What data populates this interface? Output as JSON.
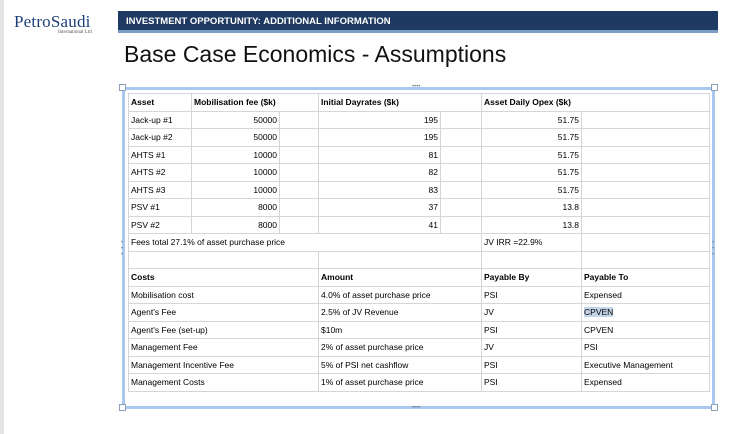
{
  "logo": {
    "name": "PetroSaudi",
    "tagline": "International Ltd"
  },
  "banner": {
    "text": "INVESTMENT OPPORTUNITY: ADDITIONAL INFORMATION"
  },
  "title": "Base Case Economics - Assumptions",
  "assets_table": {
    "headers": [
      "Asset",
      "Mobilisation fee ($k)",
      "Initial Dayrates ($k)",
      "Asset Daily Opex ($k)"
    ],
    "rows": [
      [
        "Jack-up #1",
        "50000",
        "195",
        "51.75"
      ],
      [
        "Jack-up #2",
        "50000",
        "195",
        "51.75"
      ],
      [
        "AHTS #1",
        "10000",
        "81",
        "51.75"
      ],
      [
        "AHTS #2",
        "10000",
        "82",
        "51.75"
      ],
      [
        "AHTS #3",
        "10000",
        "83",
        "51.75"
      ],
      [
        "PSV #1",
        "8000",
        "37",
        "13.8"
      ],
      [
        "PSV #2",
        "8000",
        "41",
        "13.8"
      ]
    ],
    "fees_note": "Fees total 27.1% of asset purchase price",
    "irr_note": "JV IRR =22.9%"
  },
  "costs_table": {
    "headers": [
      "Costs",
      "Amount",
      "Payable By",
      "Payable To"
    ],
    "rows": [
      [
        "Mobilisation cost",
        "4.0% of asset purchase price",
        "PSI",
        "Expensed"
      ],
      [
        "Agent's Fee",
        "2.5% of JV Revenue",
        "JV",
        "CPVEN"
      ],
      [
        "Agent's Fee (set-up)",
        "$10m",
        "PSI",
        "CPVEN"
      ],
      [
        "Management Fee",
        "2% of asset purchase price",
        "JV",
        "PSI"
      ],
      [
        "Management Incentive Fee",
        "5% of PSI net cashflow",
        "PSI",
        "Executive Management"
      ],
      [
        "Management Costs",
        "1% of asset purchase price",
        "PSI",
        "Expensed"
      ]
    ]
  }
}
